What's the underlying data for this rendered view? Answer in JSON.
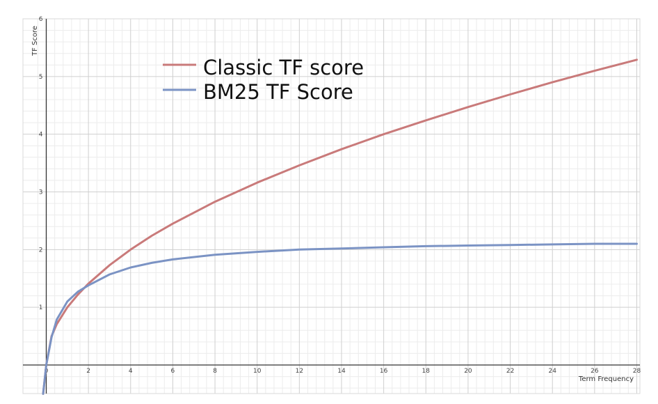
{
  "chart_data": {
    "type": "line",
    "title": "",
    "xlabel": "Term Frequency",
    "ylabel": "TF Score",
    "xlim": [
      0,
      28
    ],
    "ylim": [
      -0.5,
      6
    ],
    "x_ticks": [
      0,
      2,
      4,
      6,
      8,
      10,
      12,
      14,
      16,
      18,
      20,
      22,
      24,
      26,
      28
    ],
    "y_ticks": [
      1,
      2,
      3,
      4,
      5,
      6
    ],
    "grid": true,
    "legend": "top-left",
    "series": [
      {
        "name": "Classic TF score",
        "color": "#c97a7a",
        "x": [
          0,
          0.25,
          0.5,
          1,
          1.5,
          2,
          3,
          4,
          5,
          6,
          8,
          10,
          12,
          14,
          16,
          18,
          20,
          22,
          24,
          26,
          28
        ],
        "y": [
          0,
          0.5,
          0.71,
          1,
          1.22,
          1.41,
          1.73,
          2,
          2.24,
          2.45,
          2.83,
          3.16,
          3.46,
          3.74,
          4,
          4.24,
          4.47,
          4.69,
          4.9,
          5.1,
          5.29
        ]
      },
      {
        "name": "BM25 TF Score",
        "color": "#7b93c4",
        "x": [
          0,
          0.25,
          0.5,
          1,
          1.5,
          2,
          3,
          4,
          5,
          6,
          8,
          10,
          12,
          14,
          16,
          18,
          20,
          22,
          24,
          26,
          28
        ],
        "y": [
          0,
          0.48,
          0.79,
          1.1,
          1.27,
          1.38,
          1.57,
          1.69,
          1.77,
          1.83,
          1.91,
          1.96,
          2,
          2.02,
          2.04,
          2.06,
          2.07,
          2.08,
          2.09,
          2.1,
          2.1
        ]
      }
    ]
  }
}
